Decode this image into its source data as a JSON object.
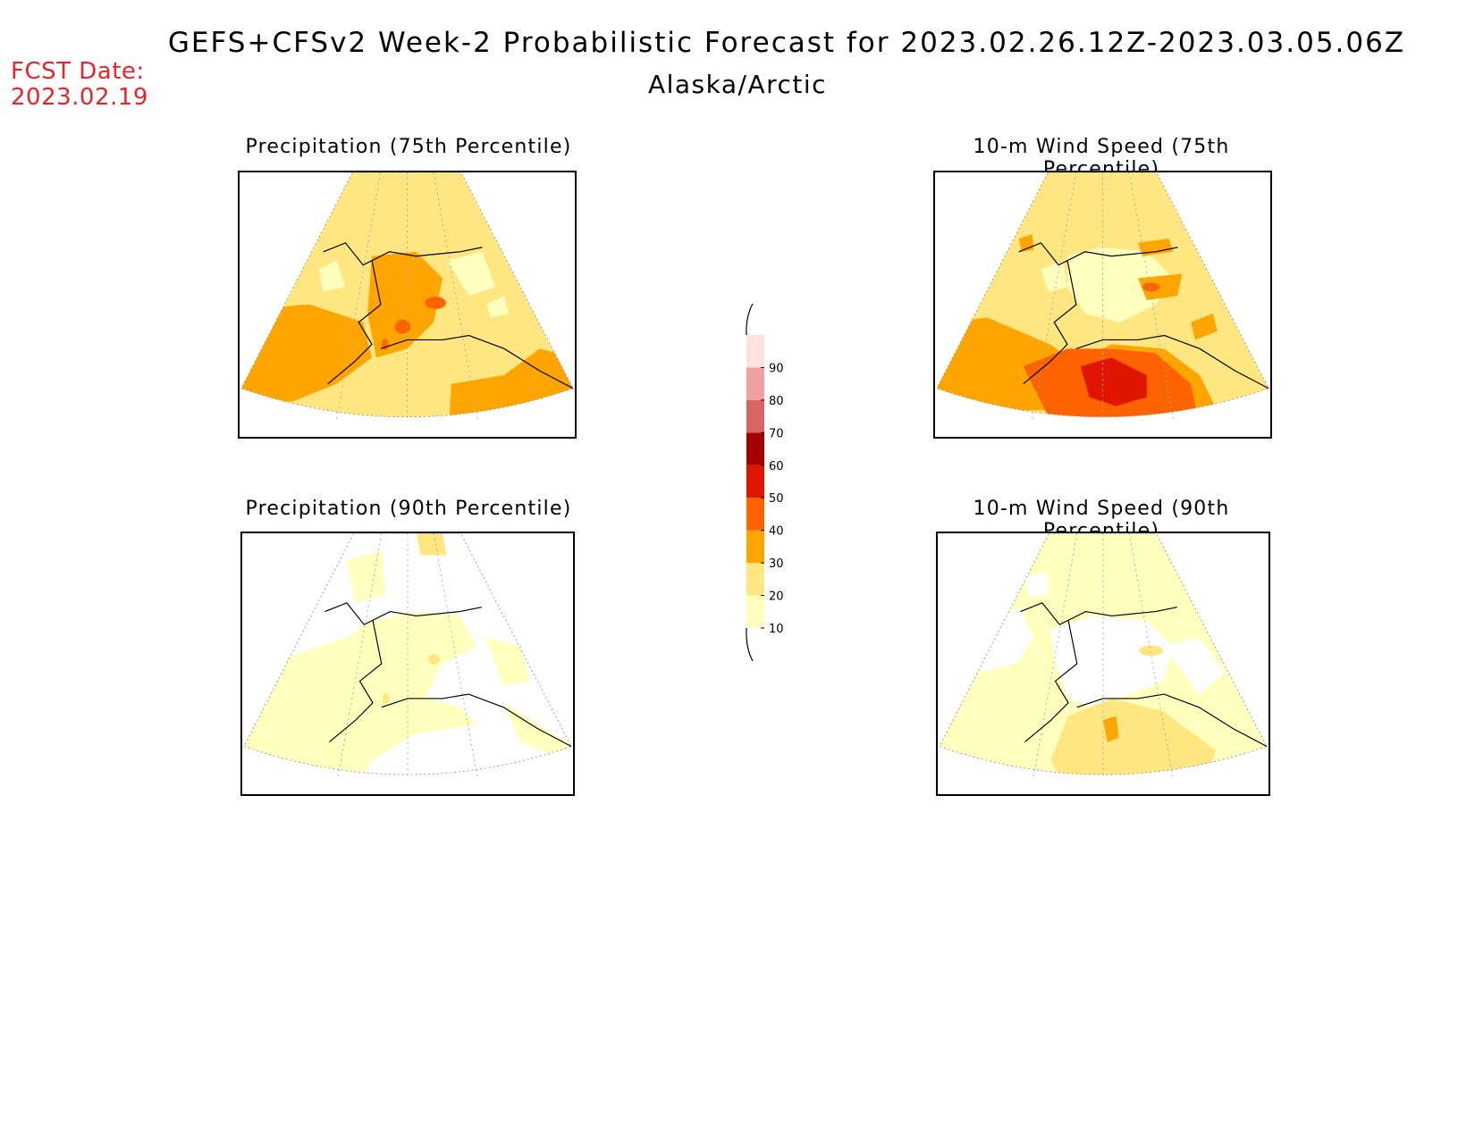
{
  "header": {
    "title": "GEFS+CFSv2 Week-2 Probabilistic Forecast for 2023.02.26.12Z-2023.03.05.06Z",
    "region": "Alaska/Arctic",
    "fcst_date_label": "FCST Date:",
    "fcst_date_value": "2023.02.19"
  },
  "panels": [
    {
      "id": "precip75",
      "title": "Precipitation (75th Percentile)"
    },
    {
      "id": "wind75",
      "title": "10-m Wind Speed (75th Percentile)"
    },
    {
      "id": "precip90",
      "title": "Precipitation (90th Percentile)"
    },
    {
      "id": "wind90",
      "title": "10-m Wind Speed (90th Percentile)"
    }
  ],
  "colorbar": {
    "ticks": [
      "10",
      "20",
      "30",
      "40",
      "50",
      "60",
      "70",
      "80",
      "90"
    ],
    "colors": [
      "#ffffbe",
      "#ffe680",
      "#ffa500",
      "#ff6300",
      "#e01500",
      "#a50000",
      "#d86464",
      "#f0a0a0",
      "#fde2e2"
    ]
  }
}
